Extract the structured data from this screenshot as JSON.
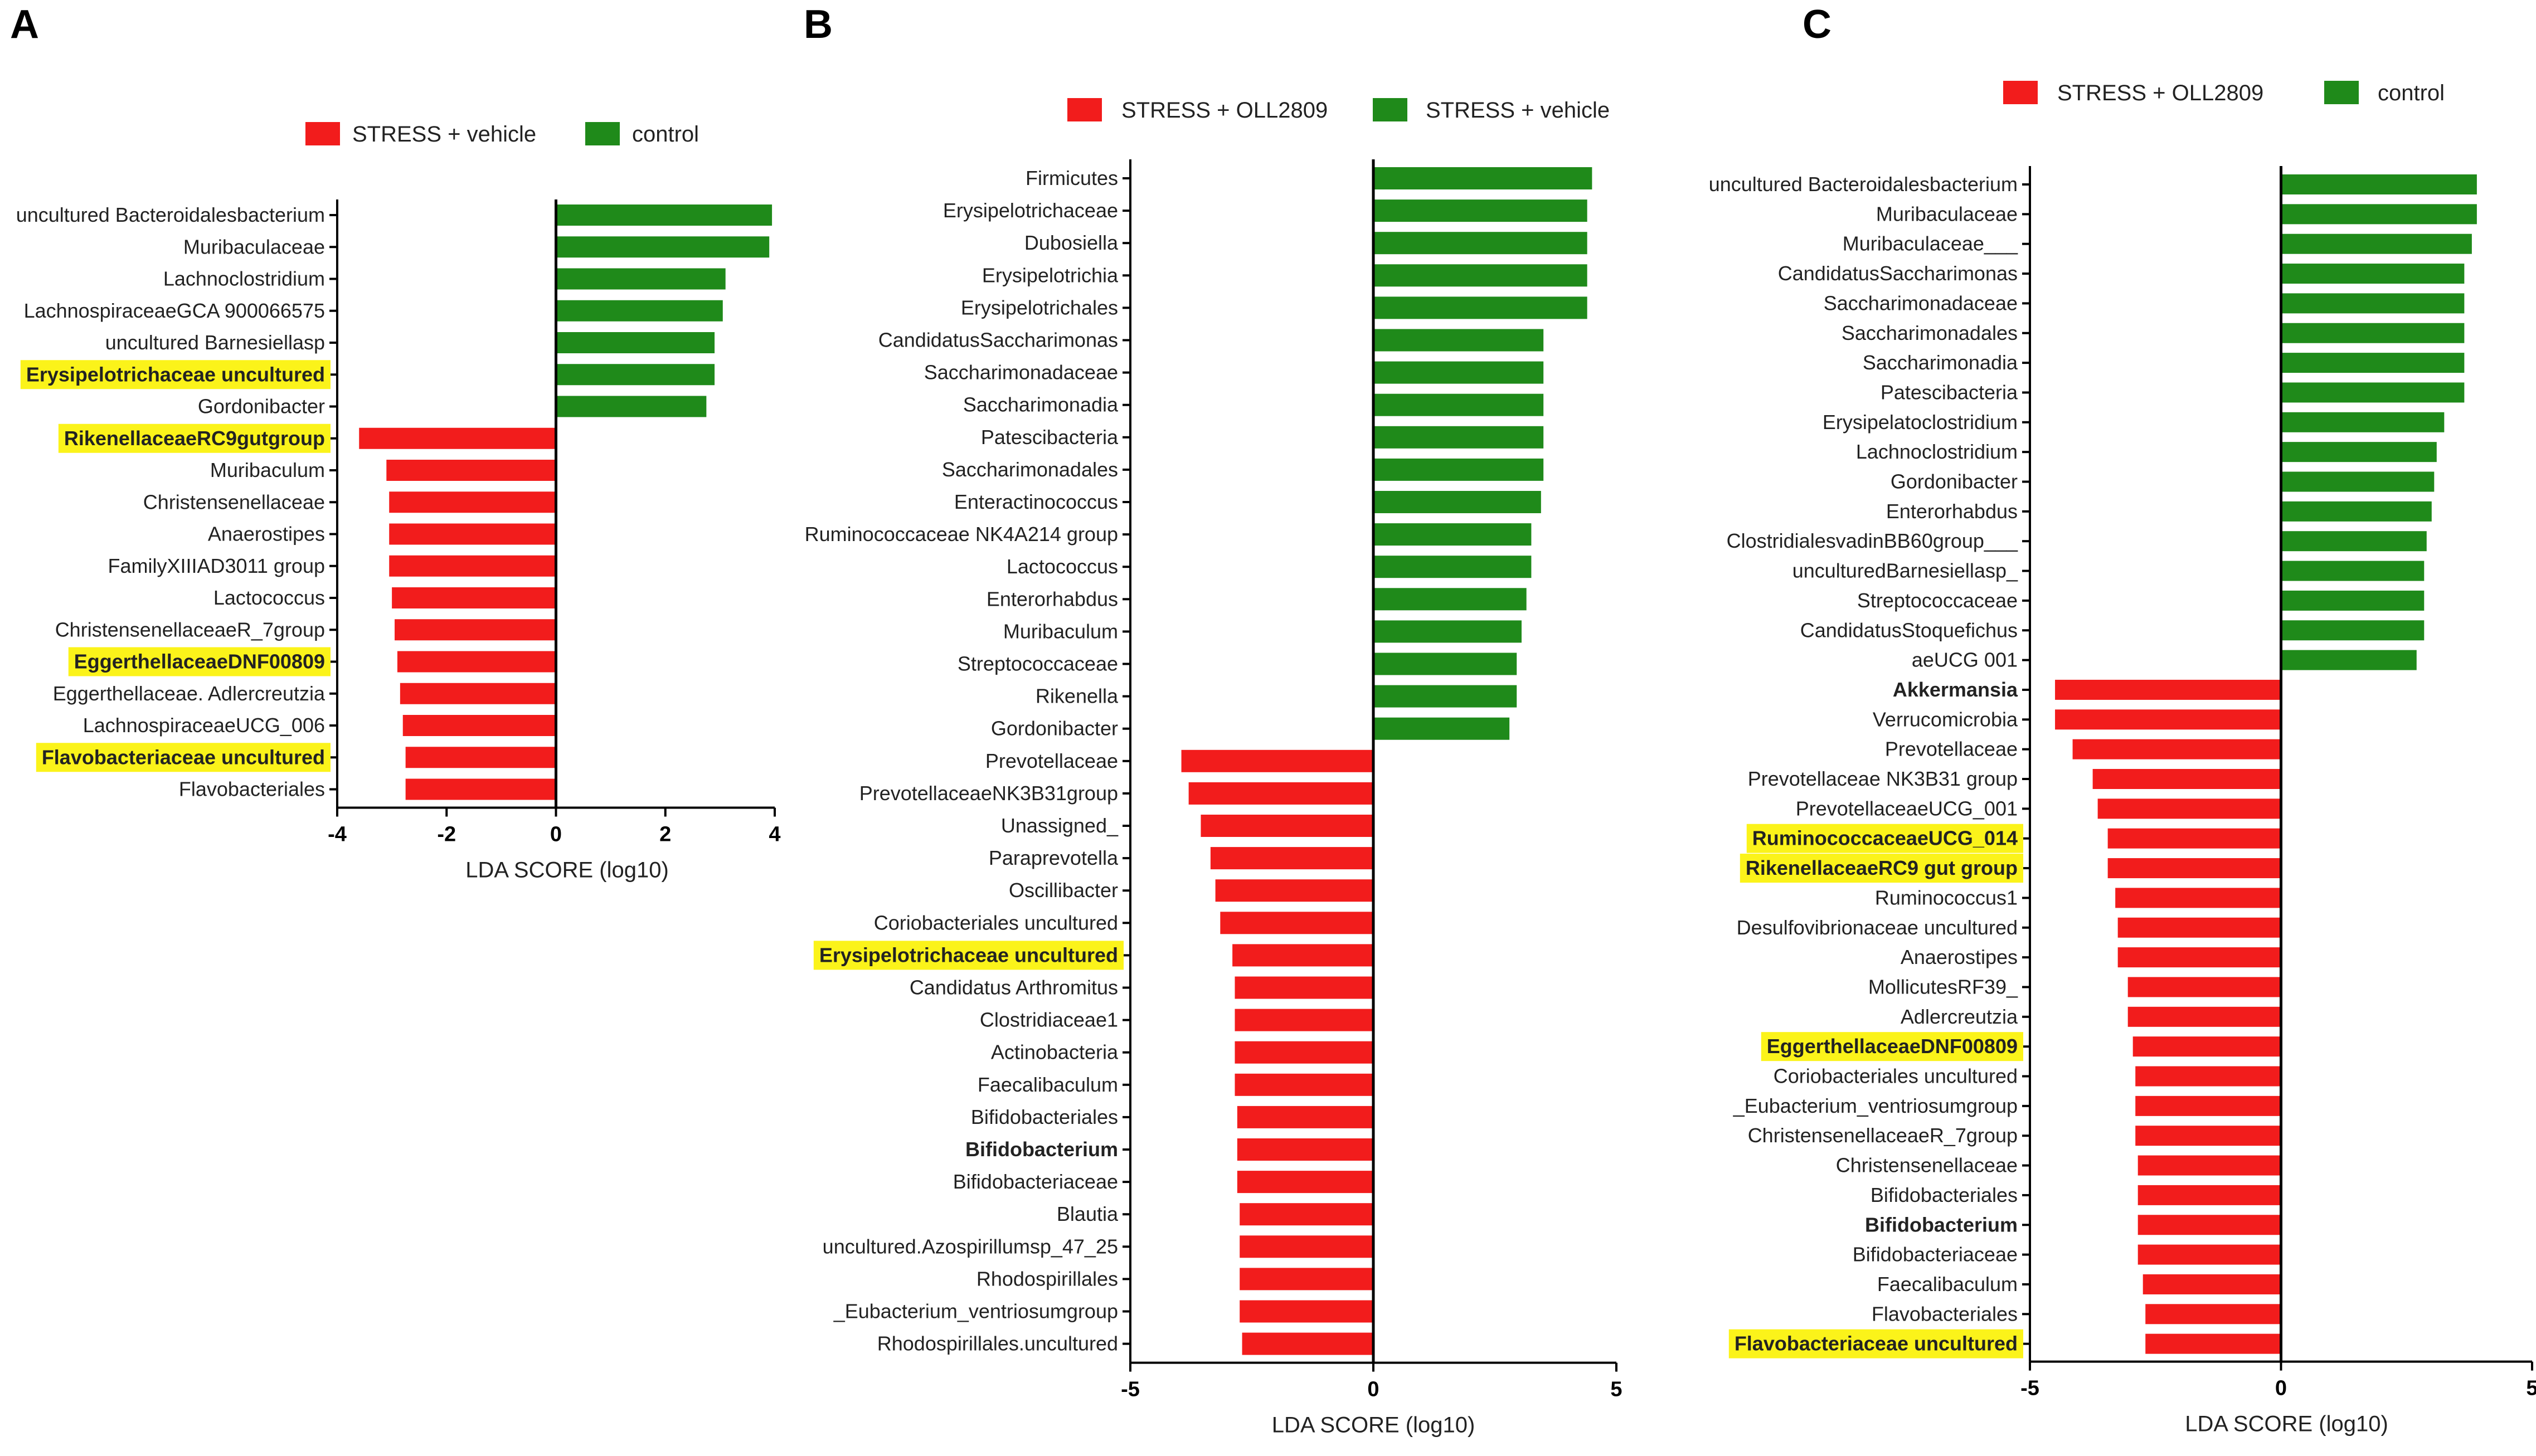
{
  "colors": {
    "pos": "#1f8a1a",
    "neg": "#f21c1c",
    "highlight": "#fbf31a",
    "axis": "#000000"
  },
  "panels": [
    {
      "letter": "A"
    },
    {
      "letter": "B"
    },
    {
      "letter": "C"
    }
  ],
  "chart_data": [
    {
      "type": "bar",
      "orientation": "horizontal",
      "panel": "A",
      "xlabel": "LDA SCORE (log10)",
      "xlim": [
        -4,
        4
      ],
      "xticks": [
        -4,
        -2,
        0,
        2,
        4
      ],
      "legend": [
        {
          "name": "STRESS + vehicle",
          "color": "#f21c1c"
        },
        {
          "name": "control",
          "color": "#1f8a1a"
        }
      ],
      "categories": [
        "uncultured Bacteroidalesbacterium",
        "Muribaculaceae",
        "Lachnoclostridium",
        "LachnospiraceaeGCA 900066575",
        "uncultured Barnesiellasp",
        "Erysipelotrichaceae uncultured",
        "Gordonibacter",
        "RikenellaceaeRC9gutgroup",
        "Muribaculum",
        "Christensenellaceae",
        "Anaerostipes",
        "FamilyXIIIAD3011 group",
        "Lactococcus",
        "ChristensenellaceaeR_7group",
        "EggerthellaceaeDNF00809",
        "Eggerthellaceae. Adlercreutzia",
        "LachnospiraceaeUCG_006",
        "Flavobacteriaceae uncultured",
        "Flavobacteriales"
      ],
      "values": [
        3.95,
        3.9,
        3.1,
        3.05,
        2.9,
        2.9,
        2.75,
        -3.6,
        -3.1,
        -3.05,
        -3.05,
        -3.05,
        -3.0,
        -2.95,
        -2.9,
        -2.85,
        -2.8,
        -2.75,
        -2.75
      ],
      "highlighted": [
        "Erysipelotrichaceae uncultured",
        "RikenellaceaeRC9gutgroup",
        "EggerthellaceaeDNF00809",
        "Flavobacteriaceae uncultured"
      ],
      "bold": [
        "Erysipelotrichaceae uncultured",
        "RikenellaceaeRC9gutgroup",
        "EggerthellaceaeDNF00809",
        "Flavobacteriaceae uncultured"
      ]
    },
    {
      "type": "bar",
      "orientation": "horizontal",
      "panel": "B",
      "xlabel": "LDA SCORE (log10)",
      "xlim": [
        -5,
        5
      ],
      "xticks": [
        -5,
        0,
        5
      ],
      "legend": [
        {
          "name": "STRESS + OLL2809",
          "color": "#f21c1c"
        },
        {
          "name": "STRESS + vehicle",
          "color": "#1f8a1a"
        }
      ],
      "categories": [
        "Firmicutes",
        "Erysipelotrichaceae",
        "Dubosiella",
        "Erysipelotrichia",
        "Erysipelotrichales",
        "CandidatusSaccharimonas",
        "Saccharimonadaceae",
        "Saccharimonadia",
        "Patescibacteria",
        "Saccharimonadales",
        "Enteractinococcus",
        "Ruminococcaceae NK4A214 group",
        "Lactococcus",
        "Enterorhabdus",
        "Muribaculum",
        "Streptococcaceae",
        "Rikenella",
        "Gordonibacter",
        "Prevotellaceae",
        "PrevotellaceaeNK3B31group",
        "Unassigned_",
        "Paraprevotella",
        "Oscillibacter",
        "Coriobacteriales uncultured",
        "Erysipelotrichaceae uncultured",
        "Candidatus Arthromitus",
        "Clostridiaceae1",
        "Actinobacteria",
        "Faecalibaculum",
        "Bifidobacteriales",
        "Bifidobacterium",
        "Bifidobacteriaceae",
        "Blautia",
        "uncultured.Azospirillumsp_47_25",
        "Rhodospirillales",
        "_Eubacterium_ventriosumgroup",
        "Rhodospirillales.uncultured"
      ],
      "values": [
        4.5,
        4.4,
        4.4,
        4.4,
        4.4,
        3.5,
        3.5,
        3.5,
        3.5,
        3.5,
        3.45,
        3.25,
        3.25,
        3.15,
        3.05,
        2.95,
        2.95,
        2.8,
        -3.95,
        -3.8,
        -3.55,
        -3.35,
        -3.25,
        -3.15,
        -2.9,
        -2.85,
        -2.85,
        -2.85,
        -2.85,
        -2.8,
        -2.8,
        -2.8,
        -2.75,
        -2.75,
        -2.75,
        -2.75,
        -2.7
      ],
      "highlighted": [
        "Erysipelotrichaceae uncultured"
      ],
      "bold": [
        "Erysipelotrichaceae uncultured",
        "Bifidobacterium"
      ]
    },
    {
      "type": "bar",
      "orientation": "horizontal",
      "panel": "C",
      "xlabel": "LDA SCORE (log10)",
      "xlim": [
        -5,
        5
      ],
      "xticks": [
        -5,
        0,
        5
      ],
      "legend": [
        {
          "name": "STRESS + OLL2809",
          "color": "#f21c1c"
        },
        {
          "name": "control",
          "color": "#1f8a1a"
        }
      ],
      "categories": [
        "uncultured Bacteroidalesbacterium",
        "Muribaculaceae",
        "Muribaculaceae___",
        "CandidatusSaccharimonas",
        "Saccharimonadaceae",
        "Saccharimonadales",
        "Saccharimonadia",
        "Patescibacteria",
        "Erysipelatoclostridium",
        "Lachnoclostridium",
        "Gordonibacter",
        "Enterorhabdus",
        "ClostridialesvadinBB60group___",
        "unculturedBarnesiellasp_",
        "Streptococcaceae",
        "CandidatusStoquefichus",
        "aeUCG 001",
        "Akkermansia",
        "Verrucomicrobia",
        "Prevotellaceae",
        "Prevotellaceae NK3B31 group",
        "PrevotellaceaeUCG_001",
        "RuminococcaceaeUCG_014",
        "RikenellaceaeRC9 gut group",
        "Ruminococcus1",
        "Desulfovibrionaceae uncultured",
        "Anaerostipes",
        "MollicutesRF39_",
        "Adlercreutzia",
        "EggerthellaceaeDNF00809",
        "Coriobacteriales uncultured",
        "_Eubacterium_ventriosumgroup",
        "ChristensenellaceaeR_7group",
        "Christensenellaceae",
        "Bifidobacteriales",
        "Bifidobacterium",
        "Bifidobacteriaceae",
        "Faecalibaculum",
        "Flavobacteriales",
        "Flavobacteriaceae uncultured"
      ],
      "values": [
        3.9,
        3.9,
        3.8,
        3.65,
        3.65,
        3.65,
        3.65,
        3.65,
        3.25,
        3.1,
        3.05,
        3.0,
        2.9,
        2.85,
        2.85,
        2.85,
        2.7,
        -4.5,
        -4.5,
        -4.15,
        -3.75,
        -3.65,
        -3.45,
        -3.45,
        -3.3,
        -3.25,
        -3.25,
        -3.05,
        -3.05,
        -2.95,
        -2.9,
        -2.9,
        -2.9,
        -2.85,
        -2.85,
        -2.85,
        -2.85,
        -2.75,
        -2.7,
        -2.7
      ],
      "highlighted": [
        "RuminococcaceaeUCG_014",
        "RikenellaceaeRC9 gut group",
        "EggerthellaceaeDNF00809",
        "Flavobacteriaceae uncultured"
      ],
      "bold": [
        "Akkermansia",
        "RuminococcaceaeUCG_014",
        "RikenellaceaeRC9 gut group",
        "EggerthellaceaeDNF00809",
        "Bifidobacterium",
        "Flavobacteriaceae uncultured"
      ]
    }
  ]
}
